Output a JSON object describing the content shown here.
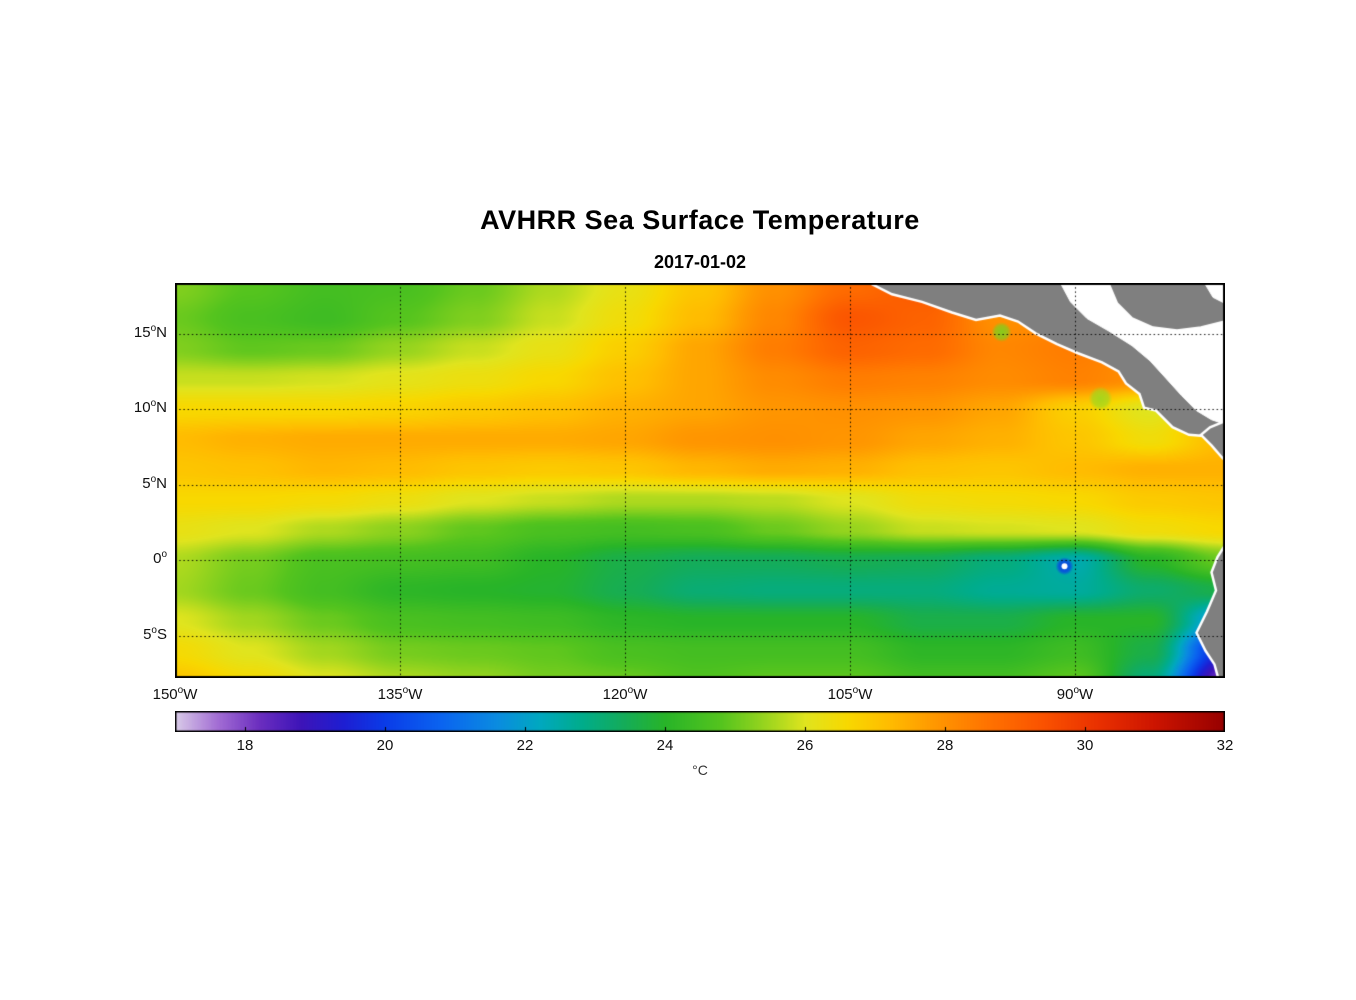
{
  "chart_data": {
    "type": "heatmap",
    "title": "AVHRR Sea Surface Temperature",
    "subtitle": "2017-01-02",
    "projection": {
      "lon_min": -150,
      "lon_max": -80,
      "lat_min": -7.8,
      "lat_max": 18.35
    },
    "x_axis": {
      "ticks": [
        {
          "text": "150",
          "sup": "o",
          "suffix": "W",
          "lon": -150
        },
        {
          "text": "135",
          "sup": "o",
          "suffix": "W",
          "lon": -135
        },
        {
          "text": "120",
          "sup": "o",
          "suffix": "W",
          "lon": -120
        },
        {
          "text": "105",
          "sup": "o",
          "suffix": "W",
          "lon": -105
        },
        {
          "text": "90",
          "sup": "o",
          "suffix": "W",
          "lon": -90
        }
      ]
    },
    "y_axis": {
      "ticks": [
        {
          "text": "15",
          "sup": "o",
          "suffix": "N",
          "lat": 15
        },
        {
          "text": "10",
          "sup": "o",
          "suffix": "N",
          "lat": 10
        },
        {
          "text": "5",
          "sup": "o",
          "suffix": "N",
          "lat": 5
        },
        {
          "text": "0",
          "sup": "o",
          "suffix": "",
          "lat": 0
        },
        {
          "text": "5",
          "sup": "o",
          "suffix": "S",
          "lat": -5
        }
      ]
    },
    "grid_lons": [
      -135,
      -120,
      -105,
      -90
    ],
    "grid_lats": [
      15,
      10,
      5,
      0,
      -5
    ],
    "sst_grid": {
      "lons": [
        -150,
        -145,
        -140,
        -135,
        -130,
        -125,
        -120,
        -115,
        -110,
        -105,
        -100,
        -95,
        -90,
        -85,
        -80
      ],
      "lats": [
        18,
        16,
        14,
        12,
        10,
        8,
        6,
        4,
        2,
        0,
        -2,
        -4,
        -6,
        -8
      ],
      "values_degC": [
        [
          25.2,
          24.8,
          24.5,
          24.6,
          25.0,
          25.6,
          26.2,
          27.0,
          28.0,
          28.8,
          29.2,
          28.6,
          28.0,
          27.6,
          27.4
        ],
        [
          25.0,
          24.6,
          24.4,
          24.8,
          25.2,
          25.8,
          26.4,
          27.2,
          28.2,
          29.3,
          29.0,
          28.0,
          28.2,
          27.8,
          27.2
        ],
        [
          25.2,
          24.9,
          25.0,
          25.4,
          25.8,
          26.2,
          26.8,
          27.6,
          28.4,
          29.0,
          28.8,
          28.2,
          28.4,
          28.0,
          27.4
        ],
        [
          25.8,
          25.8,
          25.9,
          26.1,
          26.3,
          26.6,
          27.1,
          27.6,
          28.1,
          28.4,
          28.3,
          28.1,
          28.3,
          28.0,
          27.6
        ],
        [
          26.6,
          26.6,
          26.6,
          26.7,
          26.9,
          27.1,
          27.4,
          27.6,
          27.9,
          28.0,
          27.9,
          27.6,
          26.8,
          26.0,
          27.4
        ],
        [
          27.2,
          27.4,
          27.5,
          27.5,
          27.5,
          27.5,
          27.6,
          27.9,
          28.0,
          27.9,
          27.6,
          27.4,
          27.0,
          26.4,
          27.2
        ],
        [
          27.0,
          27.1,
          27.3,
          27.2,
          27.0,
          26.9,
          27.0,
          27.3,
          27.5,
          27.4,
          27.1,
          27.0,
          27.2,
          27.4,
          27.4
        ],
        [
          26.6,
          26.6,
          26.5,
          26.3,
          26.0,
          25.8,
          25.6,
          25.6,
          25.7,
          26.0,
          26.4,
          26.5,
          26.6,
          26.9,
          27.0
        ],
        [
          26.2,
          26.0,
          25.6,
          25.3,
          24.9,
          24.6,
          24.5,
          24.6,
          25.0,
          25.4,
          25.8,
          25.9,
          26.0,
          26.4,
          26.6
        ],
        [
          25.6,
          25.1,
          24.6,
          24.5,
          24.4,
          24.0,
          23.6,
          23.4,
          23.4,
          23.5,
          23.4,
          23.0,
          22.4,
          24.0,
          25.0
        ],
        [
          25.5,
          25.0,
          24.5,
          24.1,
          24.0,
          23.9,
          23.5,
          23.1,
          23.0,
          23.0,
          23.0,
          22.7,
          22.6,
          23.2,
          23.6
        ],
        [
          26.0,
          25.5,
          25.0,
          24.6,
          24.5,
          24.4,
          24.1,
          24.0,
          24.0,
          24.0,
          23.6,
          23.6,
          24.0,
          24.0,
          21.5
        ],
        [
          26.5,
          26.0,
          25.5,
          25.1,
          25.0,
          24.9,
          24.6,
          24.5,
          24.5,
          24.5,
          24.1,
          24.1,
          24.4,
          23.6,
          19.5
        ],
        [
          27.0,
          26.5,
          26.0,
          25.6,
          25.4,
          25.1,
          25.0,
          24.7,
          24.9,
          24.9,
          24.5,
          24.5,
          24.9,
          23.0,
          18.0
        ]
      ]
    },
    "colormap_stops": [
      [
        17.0,
        "#D9CBE8"
      ],
      [
        17.6,
        "#A36ED4"
      ],
      [
        18.2,
        "#6B2EBF"
      ],
      [
        18.8,
        "#3D14B8"
      ],
      [
        19.4,
        "#1E1ED2"
      ],
      [
        20.0,
        "#0A3CE8"
      ],
      [
        20.8,
        "#0A64F0"
      ],
      [
        21.6,
        "#0A8CE0"
      ],
      [
        22.2,
        "#00A8C0"
      ],
      [
        22.8,
        "#00AC8C"
      ],
      [
        23.4,
        "#14AC5A"
      ],
      [
        24.0,
        "#28B428"
      ],
      [
        24.8,
        "#55C41E"
      ],
      [
        25.4,
        "#96D41E"
      ],
      [
        26.0,
        "#E0E41E"
      ],
      [
        26.6,
        "#F8D800"
      ],
      [
        27.2,
        "#FFBC00"
      ],
      [
        27.8,
        "#FF9A00"
      ],
      [
        28.6,
        "#FF7300"
      ],
      [
        29.4,
        "#FA5200"
      ],
      [
        30.2,
        "#E93000"
      ],
      [
        31.0,
        "#CC1400"
      ],
      [
        32.0,
        "#960000"
      ]
    ],
    "colorbar": {
      "min": 17,
      "max": 32,
      "tick_values": [
        18,
        20,
        22,
        24,
        26,
        28,
        30,
        32
      ],
      "unit_label": "°C"
    },
    "land_color": "#7F7F7F",
    "coast_outline_color": "#FFFFFF",
    "no_data_color": "#FFFFFF",
    "overlay_polygons": [
      {
        "name": "central-america-land",
        "kind": "land",
        "points": [
          [
            -103.8,
            18.4
          ],
          [
            -102.2,
            17.6
          ],
          [
            -100.2,
            17.1
          ],
          [
            -98.2,
            16.4
          ],
          [
            -96.6,
            15.9
          ],
          [
            -95.0,
            16.2
          ],
          [
            -93.8,
            15.8
          ],
          [
            -92.6,
            15.0
          ],
          [
            -91.2,
            14.3
          ],
          [
            -89.8,
            13.7
          ],
          [
            -88.2,
            13.1
          ],
          [
            -87.1,
            12.5
          ],
          [
            -86.6,
            11.7
          ],
          [
            -85.7,
            11.0
          ],
          [
            -85.4,
            10.1
          ],
          [
            -84.6,
            9.9
          ],
          [
            -83.5,
            8.8
          ],
          [
            -82.4,
            8.3
          ],
          [
            -81.2,
            8.2
          ],
          [
            -80.4,
            7.3
          ],
          [
            -80.0,
            7.0
          ],
          [
            -80.0,
            18.4
          ]
        ]
      },
      {
        "name": "caribbean-no-data",
        "kind": "nodata",
        "points": [
          [
            -91.0,
            18.4
          ],
          [
            -90.3,
            17.1
          ],
          [
            -89.2,
            16.0
          ],
          [
            -87.8,
            15.2
          ],
          [
            -86.2,
            14.2
          ],
          [
            -85.0,
            13.2
          ],
          [
            -83.9,
            12.0
          ],
          [
            -82.9,
            10.9
          ],
          [
            -81.9,
            9.9
          ],
          [
            -80.9,
            9.3
          ],
          [
            -80.0,
            9.0
          ],
          [
            -80.0,
            18.4
          ]
        ]
      },
      {
        "name": "yucatan-honduras-land",
        "kind": "land",
        "points": [
          [
            -87.8,
            18.4
          ],
          [
            -87.2,
            17.0
          ],
          [
            -86.2,
            16.0
          ],
          [
            -84.8,
            15.4
          ],
          [
            -83.2,
            15.2
          ],
          [
            -81.6,
            15.4
          ],
          [
            -80.0,
            15.8
          ],
          [
            -80.0,
            18.4
          ]
        ]
      },
      {
        "name": "corner-no-data",
        "kind": "nodata",
        "points": [
          [
            -81.4,
            18.4
          ],
          [
            -80.8,
            17.4
          ],
          [
            -80.0,
            17.0
          ],
          [
            -80.0,
            18.4
          ]
        ]
      },
      {
        "name": "panama-colombia-land",
        "kind": "land",
        "points": [
          [
            -80.0,
            9.2
          ],
          [
            -81.0,
            8.8
          ],
          [
            -81.6,
            8.3
          ],
          [
            -80.9,
            7.6
          ],
          [
            -80.2,
            6.8
          ],
          [
            -80.0,
            6.6
          ]
        ]
      },
      {
        "name": "south-america-land",
        "kind": "land",
        "points": [
          [
            -80.0,
            1.0
          ],
          [
            -80.5,
            0.2
          ],
          [
            -80.9,
            -0.8
          ],
          [
            -80.6,
            -2.0
          ],
          [
            -81.2,
            -3.4
          ],
          [
            -81.9,
            -4.8
          ],
          [
            -81.3,
            -6.0
          ],
          [
            -80.7,
            -6.9
          ],
          [
            -80.4,
            -8.0
          ],
          [
            -80.0,
            -8.0
          ]
        ]
      }
    ],
    "upwelling_features": [
      {
        "name": "tehuantepec-cool-spot",
        "lon": -94.9,
        "lat": 15.1,
        "temp_c": 25.2,
        "radius_px": 10
      },
      {
        "name": "papagayo-cool-spot",
        "lon": -88.3,
        "lat": 10.7,
        "temp_c": 25.5,
        "radius_px": 12
      },
      {
        "name": "galapagos-cold-spot",
        "lon": -90.7,
        "lat": -0.4,
        "temp_c": 20.0,
        "radius_px": 9
      }
    ],
    "galapagos_island_marker": {
      "lon": -90.7,
      "lat": -0.4
    }
  }
}
